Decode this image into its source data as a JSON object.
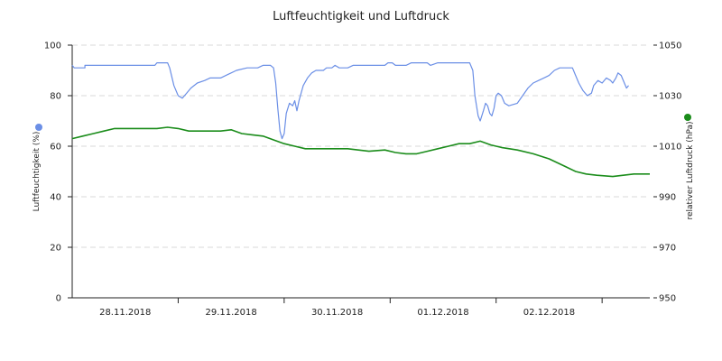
{
  "chart_data": {
    "type": "line",
    "title": "Luftfeuchtigkeit und Luftdruck",
    "y_left": {
      "label": "Luftfeuchtigkeit (%)",
      "min": 0,
      "max": 100,
      "ticks": [
        0,
        20,
        40,
        60,
        80,
        100
      ]
    },
    "y_right": {
      "label": "relativer Luftdruck (hPa)",
      "min": 950,
      "max": 1050,
      "ticks": [
        950,
        970,
        990,
        1010,
        1030,
        1050
      ]
    },
    "x_axis": {
      "range": [
        0,
        5.45
      ],
      "ticks": [
        1,
        2,
        3,
        4,
        5
      ],
      "tick_labels": [
        {
          "x": 0.5,
          "label": "28.11.2018"
        },
        {
          "x": 1.5,
          "label": "29.11.2018"
        },
        {
          "x": 2.5,
          "label": "30.11.2018"
        },
        {
          "x": 3.5,
          "label": "01.12.2018"
        },
        {
          "x": 4.5,
          "label": "02.12.2018"
        }
      ]
    },
    "grid": true,
    "series": [
      {
        "axis": "left",
        "color": "#6b8fe6",
        "points": [
          [
            0.0,
            92
          ],
          [
            0.02,
            91
          ],
          [
            0.12,
            91
          ],
          [
            0.12,
            92
          ],
          [
            0.78,
            92
          ],
          [
            0.8,
            93
          ],
          [
            0.9,
            93
          ],
          [
            0.92,
            91
          ],
          [
            0.96,
            84
          ],
          [
            1.0,
            80
          ],
          [
            1.04,
            79
          ],
          [
            1.08,
            81
          ],
          [
            1.12,
            83
          ],
          [
            1.18,
            85
          ],
          [
            1.25,
            86
          ],
          [
            1.3,
            87
          ],
          [
            1.4,
            87
          ],
          [
            1.45,
            88
          ],
          [
            1.55,
            90
          ],
          [
            1.65,
            91
          ],
          [
            1.75,
            91
          ],
          [
            1.8,
            92
          ],
          [
            1.87,
            92
          ],
          [
            1.9,
            91
          ],
          [
            1.92,
            85
          ],
          [
            1.94,
            75
          ],
          [
            1.96,
            66
          ],
          [
            1.98,
            63
          ],
          [
            2.0,
            65
          ],
          [
            2.02,
            73
          ],
          [
            2.05,
            77
          ],
          [
            2.08,
            76
          ],
          [
            2.1,
            78
          ],
          [
            2.12,
            74
          ],
          [
            2.14,
            78
          ],
          [
            2.18,
            84
          ],
          [
            2.22,
            87
          ],
          [
            2.26,
            89
          ],
          [
            2.3,
            90
          ],
          [
            2.37,
            90
          ],
          [
            2.4,
            91
          ],
          [
            2.45,
            91
          ],
          [
            2.48,
            92
          ],
          [
            2.52,
            91
          ],
          [
            2.6,
            91
          ],
          [
            2.65,
            92
          ],
          [
            2.95,
            92
          ],
          [
            2.98,
            93
          ],
          [
            3.02,
            93
          ],
          [
            3.05,
            92
          ],
          [
            3.15,
            92
          ],
          [
            3.2,
            93
          ],
          [
            3.35,
            93
          ],
          [
            3.38,
            92
          ],
          [
            3.45,
            93
          ],
          [
            3.55,
            93
          ],
          [
            3.75,
            93
          ],
          [
            3.78,
            90
          ],
          [
            3.8,
            80
          ],
          [
            3.83,
            72
          ],
          [
            3.85,
            70
          ],
          [
            3.88,
            74
          ],
          [
            3.9,
            77
          ],
          [
            3.92,
            76
          ],
          [
            3.94,
            73
          ],
          [
            3.96,
            72
          ],
          [
            3.98,
            75
          ],
          [
            4.0,
            80
          ],
          [
            4.02,
            81
          ],
          [
            4.05,
            80
          ],
          [
            4.08,
            77
          ],
          [
            4.12,
            76
          ],
          [
            4.2,
            77
          ],
          [
            4.25,
            80
          ],
          [
            4.3,
            83
          ],
          [
            4.35,
            85
          ],
          [
            4.4,
            86
          ],
          [
            4.45,
            87
          ],
          [
            4.5,
            88
          ],
          [
            4.55,
            90
          ],
          [
            4.6,
            91
          ],
          [
            4.65,
            91
          ],
          [
            4.72,
            91
          ],
          [
            4.75,
            88
          ],
          [
            4.78,
            85
          ],
          [
            4.82,
            82
          ],
          [
            4.86,
            80
          ],
          [
            4.9,
            81
          ],
          [
            4.92,
            84
          ],
          [
            4.96,
            86
          ],
          [
            5.0,
            85
          ],
          [
            5.04,
            87
          ],
          [
            5.08,
            86
          ],
          [
            5.1,
            85
          ],
          [
            5.13,
            87
          ],
          [
            5.15,
            89
          ],
          [
            5.18,
            88
          ],
          [
            5.21,
            85
          ],
          [
            5.23,
            83
          ],
          [
            5.25,
            84
          ]
        ]
      },
      {
        "axis": "right",
        "color": "#1a8c1a",
        "points": [
          [
            0.0,
            1013
          ],
          [
            0.1,
            1014
          ],
          [
            0.2,
            1015
          ],
          [
            0.3,
            1016
          ],
          [
            0.4,
            1017
          ],
          [
            0.55,
            1017
          ],
          [
            0.7,
            1017
          ],
          [
            0.8,
            1017
          ],
          [
            0.9,
            1017.5
          ],
          [
            1.0,
            1017
          ],
          [
            1.1,
            1016
          ],
          [
            1.25,
            1016
          ],
          [
            1.4,
            1016
          ],
          [
            1.5,
            1016.5
          ],
          [
            1.6,
            1015
          ],
          [
            1.7,
            1014.5
          ],
          [
            1.8,
            1014
          ],
          [
            1.9,
            1012.5
          ],
          [
            2.0,
            1011
          ],
          [
            2.1,
            1010
          ],
          [
            2.2,
            1009
          ],
          [
            2.3,
            1009
          ],
          [
            2.45,
            1009
          ],
          [
            2.6,
            1009
          ],
          [
            2.7,
            1008.5
          ],
          [
            2.8,
            1008
          ],
          [
            2.95,
            1008.5
          ],
          [
            3.05,
            1007.5
          ],
          [
            3.15,
            1007
          ],
          [
            3.25,
            1007
          ],
          [
            3.35,
            1008
          ],
          [
            3.45,
            1009
          ],
          [
            3.55,
            1010
          ],
          [
            3.65,
            1011
          ],
          [
            3.75,
            1011
          ],
          [
            3.85,
            1012
          ],
          [
            3.95,
            1010.5
          ],
          [
            4.05,
            1009.5
          ],
          [
            4.2,
            1008.5
          ],
          [
            4.35,
            1007
          ],
          [
            4.5,
            1005
          ],
          [
            4.65,
            1002
          ],
          [
            4.75,
            1000
          ],
          [
            4.85,
            999
          ],
          [
            4.95,
            998.5
          ],
          [
            5.1,
            998
          ],
          [
            5.2,
            998.5
          ],
          [
            5.3,
            999
          ],
          [
            5.4,
            999
          ],
          [
            5.45,
            999
          ]
        ]
      }
    ]
  }
}
